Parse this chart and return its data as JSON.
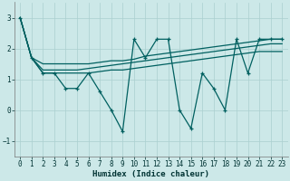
{
  "x_all": [
    0,
    1,
    2,
    3,
    4,
    5,
    6,
    7,
    8,
    9,
    10,
    11,
    12,
    13,
    14,
    15,
    16,
    17,
    18,
    19,
    20,
    21,
    22,
    23
  ],
  "volatile": [
    3.0,
    1.7,
    1.2,
    1.2,
    0.7,
    0.7,
    1.2,
    0.6,
    0.0,
    -0.7,
    2.3,
    1.7,
    2.3,
    2.3,
    0.0,
    -0.6,
    1.2,
    0.7,
    0.0,
    2.3,
    1.2,
    2.3,
    2.3,
    2.3
  ],
  "upper": [
    3.0,
    1.7,
    1.5,
    1.5,
    1.5,
    1.5,
    1.5,
    1.55,
    1.6,
    1.6,
    1.65,
    1.75,
    1.8,
    1.85,
    1.9,
    1.95,
    2.0,
    2.05,
    2.1,
    2.15,
    2.2,
    2.25,
    2.3,
    2.3
  ],
  "upper2": [
    3.0,
    1.7,
    1.3,
    1.3,
    1.3,
    1.3,
    1.35,
    1.4,
    1.45,
    1.5,
    1.55,
    1.6,
    1.65,
    1.7,
    1.75,
    1.8,
    1.85,
    1.9,
    1.95,
    2.0,
    2.05,
    2.1,
    2.15,
    2.15
  ],
  "lower": [
    3.0,
    1.7,
    1.2,
    1.2,
    1.2,
    1.2,
    1.2,
    1.25,
    1.3,
    1.3,
    1.35,
    1.4,
    1.45,
    1.5,
    1.55,
    1.6,
    1.65,
    1.7,
    1.75,
    1.8,
    1.85,
    1.9,
    1.9,
    1.9
  ],
  "background_color": "#cce8e8",
  "grid_color": "#aacfcf",
  "line_color": "#006060",
  "xlabel": "Humidex (Indice chaleur)",
  "ylim": [
    -1.5,
    3.5
  ],
  "xlim": [
    -0.5,
    23.5
  ],
  "yticks": [
    -1,
    0,
    1,
    2,
    3
  ],
  "xticks": [
    0,
    1,
    2,
    3,
    4,
    5,
    6,
    7,
    8,
    9,
    10,
    11,
    12,
    13,
    14,
    15,
    16,
    17,
    18,
    19,
    20,
    21,
    22,
    23
  ],
  "figsize": [
    3.2,
    2.0
  ],
  "dpi": 100
}
